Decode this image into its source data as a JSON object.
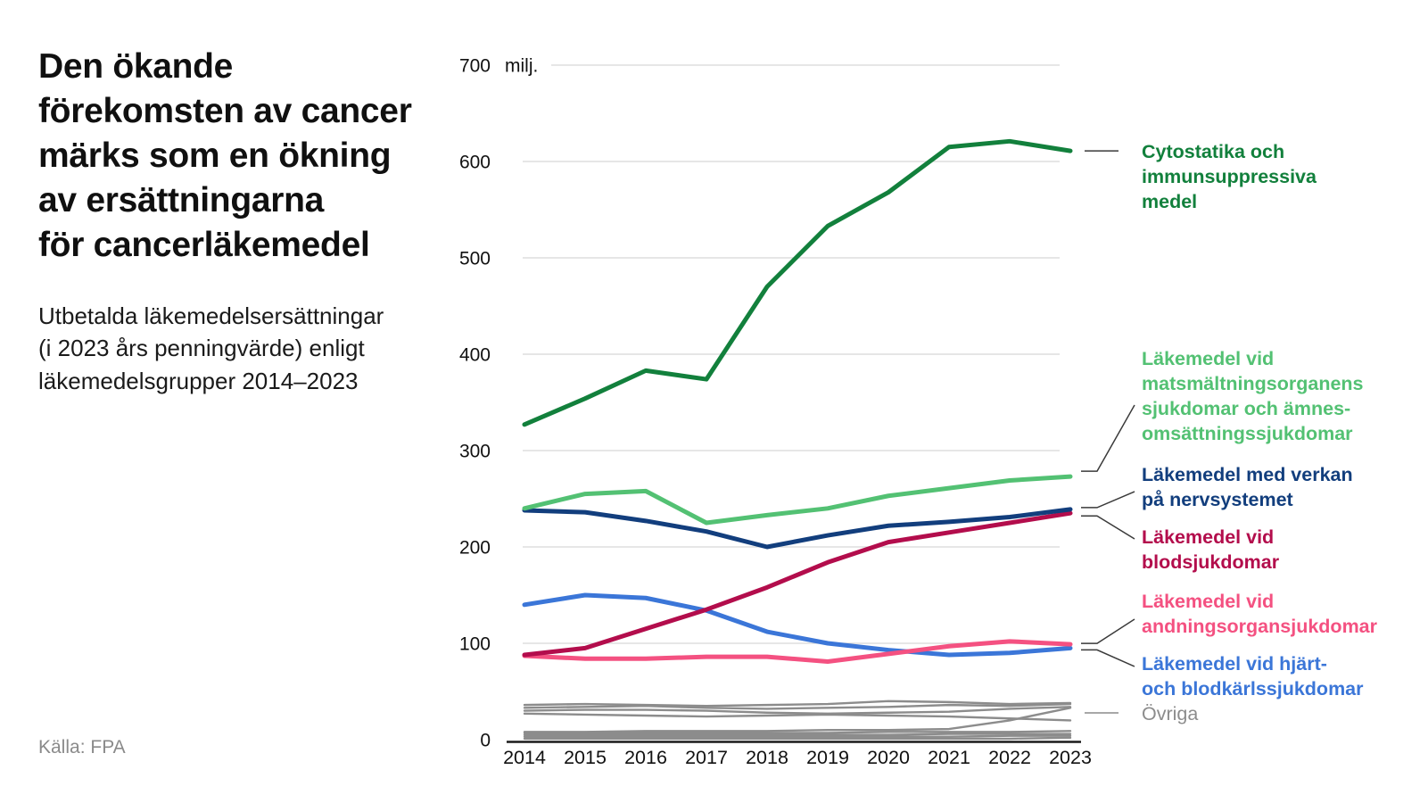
{
  "page": {
    "title": "Den ökande\nförekomsten av cancer\nmärks som en ökning\nav ersättningarna\nför cancerläkemedel",
    "subtitle": "Utbetalda läkemedelsersättningar\n(i 2023 års penningvärde) enligt\nläkemedelsgrupper 2014–2023",
    "source": "Källa: FPA"
  },
  "colors": {
    "dark_green": "#12803c",
    "light_green": "#53c173",
    "navy": "#123e7d",
    "crimson": "#b30d4c",
    "pink": "#f45181",
    "blue": "#3b76d8",
    "gray": "#8c8c8c",
    "gridline": "#d8d8d8",
    "axis": "#1a1a1a",
    "text": "#111111",
    "source_text": "#8a8a8a"
  },
  "chart_data": {
    "type": "line",
    "title": "Utbetalda läkemedelsersättningar (i 2023 års penningvärde) enligt läkemedelsgrupper 2014–2023",
    "unit": "milj.",
    "x": [
      2014,
      2015,
      2016,
      2017,
      2018,
      2019,
      2020,
      2021,
      2022,
      2023
    ],
    "ylim": [
      0,
      700
    ],
    "yticks": [
      0,
      100,
      200,
      300,
      400,
      500,
      600,
      700
    ],
    "grid": true,
    "legend_position": "right",
    "series": [
      {
        "name": "Cytostatika och immunsuppressiva medel",
        "label": "Cytostatika och\nimmunsuppressiva\nmedel",
        "color": "#12803c",
        "values": [
          327,
          354,
          383,
          374,
          470,
          533,
          568,
          615,
          621,
          611
        ]
      },
      {
        "name": "Läkemedel vid matsmältningsorganens sjukdomar och ämnesomsättningssjukdomar",
        "label": "Läkemedel vid\nmatsmältningsorganens\nsjukdomar och ämnes-\nomsättningssjukdomar",
        "color": "#53c173",
        "values": [
          240,
          255,
          258,
          225,
          233,
          240,
          253,
          261,
          269,
          273
        ]
      },
      {
        "name": "Läkemedel med verkan på nervsystemet",
        "label": "Läkemedel med verkan\npå nervsystemet",
        "color": "#123e7d",
        "values": [
          238,
          236,
          227,
          216,
          200,
          212,
          222,
          226,
          231,
          239
        ]
      },
      {
        "name": "Läkemedel vid blodsjukdomar",
        "label": "Läkemedel vid\nblodsjukdomar",
        "color": "#b30d4c",
        "values": [
          88,
          95,
          115,
          135,
          158,
          184,
          205,
          215,
          225,
          235
        ]
      },
      {
        "name": "Läkemedel vid andningsorgansjukdomar",
        "label": "Läkemedel vid\nandningsorgansjukdomar",
        "color": "#f45181",
        "values": [
          87,
          84,
          84,
          86,
          86,
          81,
          89,
          97,
          102,
          99
        ]
      },
      {
        "name": "Läkemedel vid hjärt- och blodkärlssjukdomar",
        "label": "Läkemedel vid hjärt-\noch blodkärlssjukdomar",
        "color": "#3b76d8",
        "values": [
          140,
          150,
          147,
          134,
          112,
          100,
          93,
          88,
          90,
          95
        ]
      }
    ],
    "other": {
      "name": "Övriga",
      "label": "Övriga",
      "color": "#8c8c8c",
      "lines": [
        [
          36,
          37,
          36,
          35,
          36,
          37,
          40,
          39,
          37,
          38
        ],
        [
          33,
          34,
          35,
          33,
          32,
          33,
          34,
          36,
          35,
          37
        ],
        [
          30,
          31,
          31,
          30,
          28,
          27,
          28,
          29,
          32,
          34
        ],
        [
          27,
          26,
          25,
          24,
          25,
          26,
          25,
          24,
          22,
          20
        ],
        [
          8,
          8,
          9,
          9,
          9,
          10,
          10,
          11,
          20,
          33
        ],
        [
          7,
          7,
          7,
          7,
          7,
          7,
          8,
          8,
          8,
          9
        ],
        [
          5,
          5,
          5,
          5,
          5,
          5,
          5,
          6,
          6,
          6
        ],
        [
          3,
          3,
          3,
          3,
          3,
          3,
          3,
          3,
          4,
          4
        ],
        [
          1,
          1,
          1,
          1,
          1,
          1,
          1,
          1,
          1,
          2
        ]
      ]
    }
  }
}
